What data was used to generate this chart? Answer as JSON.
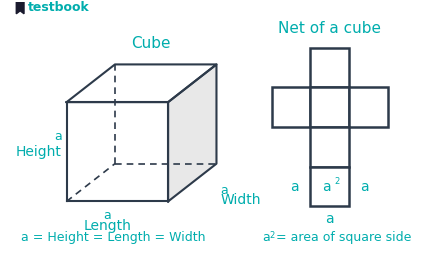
{
  "bg_color": "#ffffff",
  "cyan_color": "#00ADAD",
  "edge_color": "#2d3a4a",
  "title_cube": "Cube",
  "title_net": "Net of a cube",
  "label_a_height": "a",
  "label_height": "Height",
  "label_a_length": "a",
  "label_length": "Length",
  "label_a_width": "a",
  "label_width": "Width",
  "formula_left": "a = Height = Length = Width",
  "logo_text": "testbook",
  "font_size_title": 10,
  "font_size_label": 9,
  "font_size_formula": 9,
  "font_size_logo": 9
}
